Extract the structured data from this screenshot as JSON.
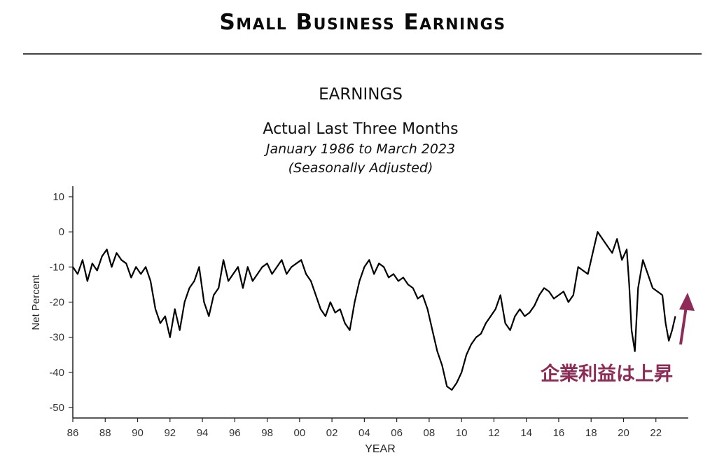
{
  "header": {
    "title": "Small Business Earnings"
  },
  "chart_data": {
    "type": "line",
    "title": "EARNINGS",
    "subtitle": "Actual Last Three Months",
    "period": "January 1986 to March 2023",
    "note": "(Seasonally Adjusted)",
    "xlabel": "YEAR",
    "ylabel": "Net Percent",
    "xlim": [
      1986,
      2024
    ],
    "ylim": [
      -50,
      10
    ],
    "yticks": [
      10,
      0,
      -10,
      -20,
      -30,
      -40,
      -50
    ],
    "xticks": [
      1986,
      1988,
      1990,
      1992,
      1994,
      1996,
      1998,
      2000,
      2002,
      2004,
      2006,
      2008,
      2010,
      2012,
      2014,
      2016,
      2018,
      2020,
      2022
    ],
    "xtick_labels": [
      "86",
      "88",
      "90",
      "92",
      "94",
      "96",
      "98",
      "00",
      "02",
      "04",
      "06",
      "08",
      "10",
      "12",
      "14",
      "16",
      "18",
      "20",
      "22"
    ],
    "grid": false,
    "series": [
      {
        "color": "#000000",
        "x": [
          1986.0,
          1986.3,
          1986.6,
          1986.9,
          1987.2,
          1987.5,
          1987.8,
          1988.1,
          1988.4,
          1988.7,
          1989.0,
          1989.3,
          1989.6,
          1989.9,
          1990.2,
          1990.5,
          1990.8,
          1991.1,
          1991.4,
          1991.7,
          1992.0,
          1992.3,
          1992.6,
          1992.9,
          1993.2,
          1993.5,
          1993.8,
          1994.1,
          1994.4,
          1994.7,
          1995.0,
          1995.3,
          1995.6,
          1995.9,
          1996.2,
          1996.5,
          1996.8,
          1997.1,
          1997.4,
          1997.7,
          1998.0,
          1998.3,
          1998.6,
          1998.9,
          1999.2,
          1999.5,
          1999.8,
          2000.1,
          2000.4,
          2000.7,
          2001.0,
          2001.3,
          2001.6,
          2001.9,
          2002.2,
          2002.5,
          2002.8,
          2003.1,
          2003.4,
          2003.7,
          2004.0,
          2004.3,
          2004.6,
          2004.9,
          2005.2,
          2005.5,
          2005.8,
          2006.1,
          2006.4,
          2006.7,
          2007.0,
          2007.3,
          2007.6,
          2007.9,
          2008.2,
          2008.5,
          2008.8,
          2009.1,
          2009.4,
          2009.7,
          2010.0,
          2010.3,
          2010.6,
          2010.9,
          2011.2,
          2011.5,
          2011.8,
          2012.1,
          2012.4,
          2012.7,
          2013.0,
          2013.3,
          2013.6,
          2013.9,
          2014.2,
          2014.5,
          2014.8,
          2015.1,
          2015.4,
          2015.7,
          2016.0,
          2016.3,
          2016.6,
          2016.9,
          2017.2,
          2017.5,
          2017.8,
          2018.1,
          2018.4,
          2018.7,
          2019.0,
          2019.3,
          2019.6,
          2019.9,
          2020.2,
          2020.35,
          2020.5,
          2020.7,
          2020.9,
          2021.2,
          2021.5,
          2021.8,
          2022.1,
          2022.4,
          2022.6,
          2022.8,
          2023.0,
          2023.2
        ],
        "values": [
          -10,
          -12,
          -8,
          -14,
          -9,
          -11,
          -7,
          -5,
          -10,
          -6,
          -8,
          -9,
          -13,
          -10,
          -12,
          -10,
          -14,
          -22,
          -26,
          -24,
          -30,
          -22,
          -28,
          -20,
          -16,
          -14,
          -10,
          -20,
          -24,
          -18,
          -16,
          -8,
          -14,
          -12,
          -10,
          -16,
          -10,
          -14,
          -12,
          -10,
          -9,
          -12,
          -10,
          -8,
          -12,
          -10,
          -9,
          -8,
          -12,
          -14,
          -18,
          -22,
          -24,
          -20,
          -23,
          -22,
          -26,
          -28,
          -20,
          -14,
          -10,
          -8,
          -12,
          -9,
          -10,
          -13,
          -12,
          -14,
          -13,
          -15,
          -16,
          -19,
          -18,
          -22,
          -28,
          -34,
          -38,
          -44,
          -45,
          -43,
          -40,
          -35,
          -32,
          -30,
          -29,
          -26,
          -24,
          -22,
          -18,
          -26,
          -28,
          -24,
          -22,
          -24,
          -23,
          -21,
          -18,
          -16,
          -17,
          -19,
          -18,
          -17,
          -20,
          -18,
          -10,
          -11,
          -12,
          -6,
          0,
          -2,
          -4,
          -6,
          -2,
          -8,
          -5,
          -15,
          -28,
          -34,
          -16,
          -8,
          -12,
          -16,
          -17,
          -18,
          -26,
          -31,
          -28,
          -24
        ]
      }
    ]
  },
  "annotation": {
    "text": "企業利益は上昇",
    "color": "#8e2c57"
  }
}
